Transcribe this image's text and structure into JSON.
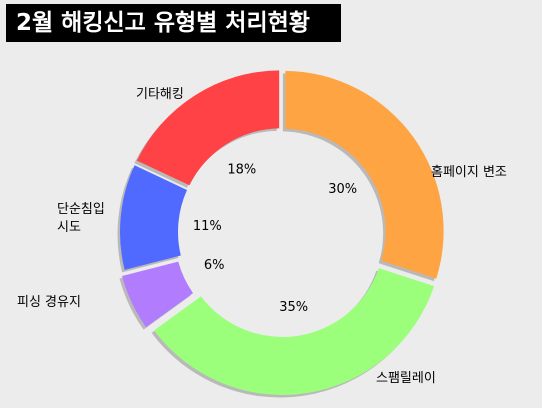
{
  "title": "2월 해킹신고 유형별 처리현황",
  "chart_data": {
    "type": "pie",
    "donut": true,
    "title": "2월 해킹신고 유형별 처리현황",
    "categories": [
      "홈페이지 변조",
      "스팸릴레이",
      "피싱 경유지",
      "단순침입 시도",
      "기타해킹"
    ],
    "values": [
      30,
      35,
      6,
      11,
      18
    ],
    "value_labels": [
      "30%",
      "35%",
      "6%",
      "11%",
      "18%"
    ],
    "colors": [
      "#ffa443",
      "#9cff7b",
      "#b27cff",
      "#506aff",
      "#ff4245"
    ],
    "legend": "none",
    "start_angle_deg": 0,
    "direction": "clockwise"
  }
}
